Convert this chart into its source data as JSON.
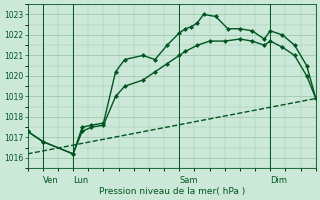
{
  "background_color": "#cce8d8",
  "grid_color": "#99c4aa",
  "line_color": "#005520",
  "xlabel": "Pression niveau de la mer( hPa )",
  "ylim": [
    1015.5,
    1023.5
  ],
  "yticks": [
    1016,
    1017,
    1018,
    1019,
    1020,
    1021,
    1022,
    1023
  ],
  "xlim": [
    0,
    9.5
  ],
  "day_positions": [
    0.5,
    1.5,
    5.0,
    8.0
  ],
  "day_labels": [
    "Ven",
    "Lun",
    "Sam",
    "Dim"
  ],
  "vline_positions": [
    0.5,
    1.5,
    5.0,
    8.0
  ],
  "line1_x": [
    0.0,
    0.5,
    1.5,
    1.8,
    2.1,
    2.5,
    2.9,
    3.2,
    3.8,
    4.2,
    4.6,
    5.0,
    5.2,
    5.4,
    5.6,
    5.8,
    6.2,
    6.6,
    7.0,
    7.4,
    7.8,
    8.0,
    8.4,
    8.8,
    9.2,
    9.5
  ],
  "line1_y": [
    1017.3,
    1016.8,
    1016.2,
    1017.5,
    1017.6,
    1017.7,
    1020.2,
    1020.8,
    1021.0,
    1020.8,
    1021.5,
    1022.1,
    1022.3,
    1022.4,
    1022.6,
    1023.0,
    1022.9,
    1022.3,
    1022.3,
    1022.2,
    1021.8,
    1022.2,
    1022.0,
    1021.5,
    1020.5,
    1018.9
  ],
  "line2_x": [
    0.0,
    0.5,
    1.5,
    1.8,
    2.1,
    2.5,
    2.9,
    3.2,
    3.8,
    4.2,
    4.6,
    5.0,
    5.2,
    5.6,
    6.0,
    6.5,
    7.0,
    7.4,
    7.8,
    8.0,
    8.4,
    8.8,
    9.2,
    9.5
  ],
  "line2_y": [
    1017.3,
    1016.8,
    1016.2,
    1017.3,
    1017.5,
    1017.6,
    1019.0,
    1019.5,
    1019.8,
    1020.2,
    1020.6,
    1021.0,
    1021.2,
    1021.5,
    1021.7,
    1021.7,
    1021.8,
    1021.7,
    1021.5,
    1021.7,
    1021.4,
    1021.0,
    1020.0,
    1018.9
  ],
  "line3_x": [
    0.0,
    9.5
  ],
  "line3_y": [
    1016.2,
    1018.9
  ],
  "marker_size": 2.5,
  "linewidth": 1.0,
  "figsize": [
    3.2,
    2.0
  ],
  "dpi": 100
}
